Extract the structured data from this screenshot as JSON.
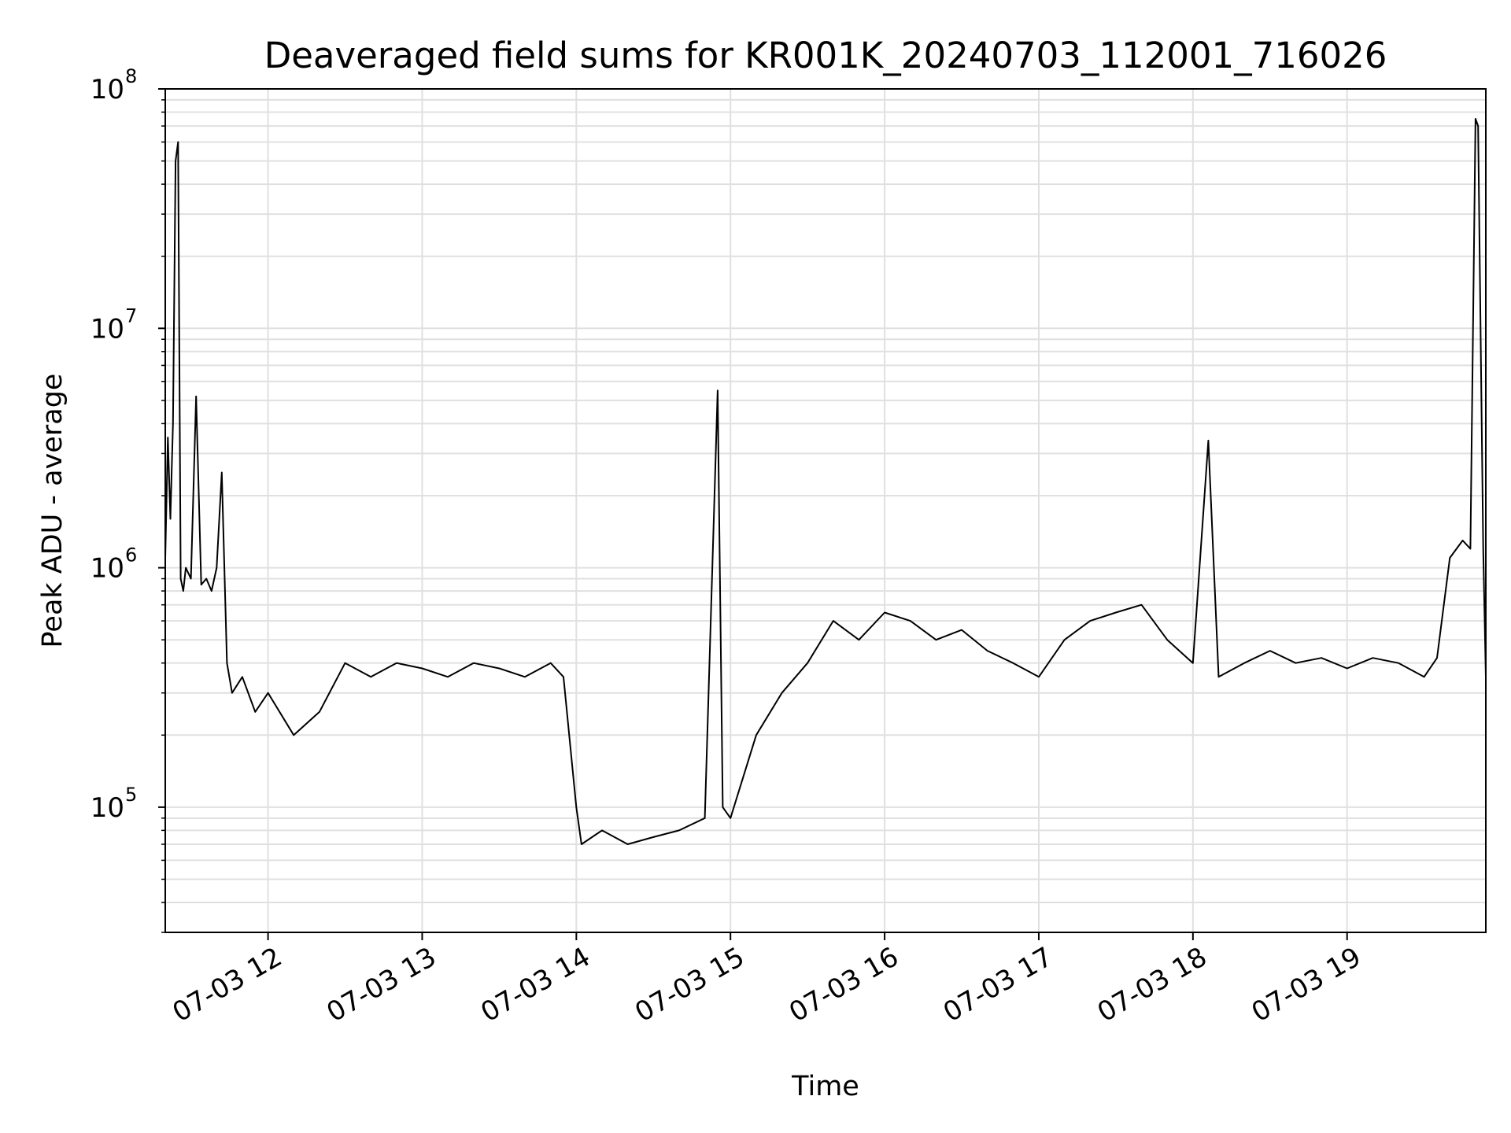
{
  "chart_data": {
    "type": "line",
    "title": "Deaveraged field sums for KR001K_20240703_112001_716026",
    "xlabel": "Time",
    "ylabel": "Peak ADU - average",
    "yscale": "log",
    "ylim": [
      30000,
      100000000
    ],
    "xlim": [
      "2024-07-03 11:20",
      "2024-07-03 19:54"
    ],
    "x_ticks": [
      {
        "value": "2024-07-03 12:00",
        "label": "07-03 12"
      },
      {
        "value": "2024-07-03 13:00",
        "label": "07-03 13"
      },
      {
        "value": "2024-07-03 14:00",
        "label": "07-03 14"
      },
      {
        "value": "2024-07-03 15:00",
        "label": "07-03 15"
      },
      {
        "value": "2024-07-03 16:00",
        "label": "07-03 16"
      },
      {
        "value": "2024-07-03 17:00",
        "label": "07-03 17"
      },
      {
        "value": "2024-07-03 18:00",
        "label": "07-03 18"
      },
      {
        "value": "2024-07-03 19:00",
        "label": "07-03 19"
      }
    ],
    "y_ticks": [
      {
        "value": 100000,
        "base": "10",
        "exp": "5"
      },
      {
        "value": 1000000,
        "base": "10",
        "exp": "6"
      },
      {
        "value": 10000000,
        "base": "10",
        "exp": "7"
      },
      {
        "value": 100000000,
        "base": "10",
        "exp": "8"
      }
    ],
    "grid": true,
    "line_color": "#000000",
    "grid_color": "#e0e0e0",
    "series": [
      {
        "x": [
          "2024-07-03 11:20",
          "2024-07-03 11:21",
          "2024-07-03 11:22",
          "2024-07-03 11:23",
          "2024-07-03 11:24",
          "2024-07-03 11:25",
          "2024-07-03 11:26",
          "2024-07-03 11:27",
          "2024-07-03 11:28",
          "2024-07-03 11:30",
          "2024-07-03 11:32",
          "2024-07-03 11:34",
          "2024-07-03 11:36",
          "2024-07-03 11:38",
          "2024-07-03 11:40",
          "2024-07-03 11:42",
          "2024-07-03 11:44",
          "2024-07-03 11:46",
          "2024-07-03 11:50",
          "2024-07-03 11:55",
          "2024-07-03 12:00",
          "2024-07-03 12:10",
          "2024-07-03 12:20",
          "2024-07-03 12:30",
          "2024-07-03 12:40",
          "2024-07-03 12:50",
          "2024-07-03 13:00",
          "2024-07-03 13:10",
          "2024-07-03 13:20",
          "2024-07-03 13:30",
          "2024-07-03 13:40",
          "2024-07-03 13:50",
          "2024-07-03 13:55",
          "2024-07-03 14:00",
          "2024-07-03 14:02",
          "2024-07-03 14:10",
          "2024-07-03 14:20",
          "2024-07-03 14:30",
          "2024-07-03 14:40",
          "2024-07-03 14:50",
          "2024-07-03 14:55",
          "2024-07-03 14:57",
          "2024-07-03 15:00",
          "2024-07-03 15:10",
          "2024-07-03 15:20",
          "2024-07-03 15:30",
          "2024-07-03 15:40",
          "2024-07-03 15:50",
          "2024-07-03 16:00",
          "2024-07-03 16:10",
          "2024-07-03 16:20",
          "2024-07-03 16:30",
          "2024-07-03 16:40",
          "2024-07-03 16:50",
          "2024-07-03 17:00",
          "2024-07-03 17:10",
          "2024-07-03 17:20",
          "2024-07-03 17:30",
          "2024-07-03 17:40",
          "2024-07-03 17:50",
          "2024-07-03 18:00",
          "2024-07-03 18:06",
          "2024-07-03 18:10",
          "2024-07-03 18:20",
          "2024-07-03 18:30",
          "2024-07-03 18:40",
          "2024-07-03 18:50",
          "2024-07-03 19:00",
          "2024-07-03 19:10",
          "2024-07-03 19:20",
          "2024-07-03 19:30",
          "2024-07-03 19:35",
          "2024-07-03 19:40",
          "2024-07-03 19:45",
          "2024-07-03 19:48",
          "2024-07-03 19:50",
          "2024-07-03 19:51",
          "2024-07-03 19:53",
          "2024-07-03 19:54"
        ],
        "y": [
          1100000,
          3500000,
          1600000,
          4000000,
          50000000,
          60000000,
          900000,
          800000,
          1000000,
          900000,
          5200000,
          850000,
          900000,
          800000,
          1000000,
          2500000,
          400000,
          300000,
          350000,
          250000,
          300000,
          200000,
          250000,
          400000,
          350000,
          400000,
          380000,
          350000,
          400000,
          380000,
          350000,
          400000,
          350000,
          100000,
          70000,
          80000,
          70000,
          75000,
          80000,
          90000,
          5500000,
          100000,
          90000,
          200000,
          300000,
          400000,
          600000,
          500000,
          650000,
          600000,
          500000,
          550000,
          450000,
          400000,
          350000,
          500000,
          600000,
          650000,
          700000,
          500000,
          400000,
          3400000,
          350000,
          400000,
          450000,
          400000,
          420000,
          380000,
          420000,
          400000,
          350000,
          420000,
          1100000,
          1300000,
          1200000,
          75000000,
          70000000,
          1200000,
          350000
        ]
      }
    ]
  }
}
